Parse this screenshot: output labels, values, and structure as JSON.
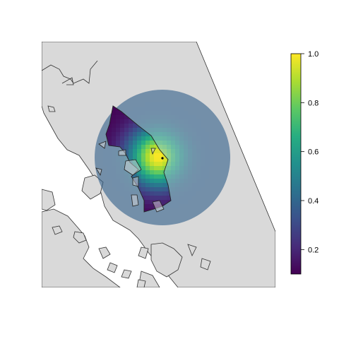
{
  "map": {
    "land_color": "#d9d9d9",
    "coast_color": "#333333",
    "marker_color": "#000000",
    "overlay_opacity": 0.62,
    "peak_value": 1.0,
    "min_value": 0.1
  },
  "legend": {
    "palette": [
      "#440154",
      "#472c7a",
      "#3b518b",
      "#2c718e",
      "#21908d",
      "#27ad81",
      "#5cc863",
      "#aadc32",
      "#fde725"
    ],
    "min": 0.1,
    "max": 1.0,
    "ticks": [
      {
        "value": 0.2,
        "label": "0.2"
      },
      {
        "value": 0.4,
        "label": "0.4"
      },
      {
        "value": 0.6,
        "label": "0.6"
      },
      {
        "value": 0.8,
        "label": "0.8"
      },
      {
        "value": 1.0,
        "label": "1.0"
      }
    ]
  }
}
